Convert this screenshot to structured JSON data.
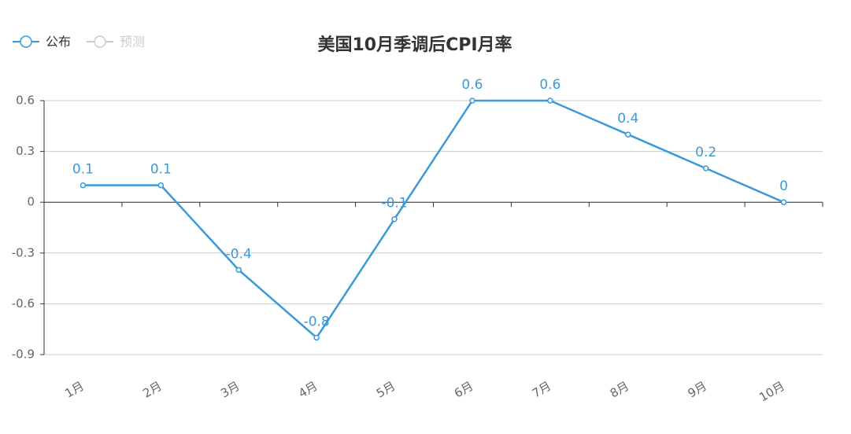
{
  "chart_data": {
    "type": "line",
    "title": "美国10月季调后CPI月率",
    "categories": [
      "1月",
      "2月",
      "3月",
      "4月",
      "5月",
      "6月",
      "7月",
      "8月",
      "9月",
      "10月"
    ],
    "series": [
      {
        "name": "公布",
        "color": "#3a9ad9",
        "values": [
          0.1,
          0.1,
          -0.4,
          -0.8,
          -0.1,
          0.6,
          0.6,
          0.4,
          0.2,
          0
        ]
      },
      {
        "name": "预测",
        "color": "#cccccc",
        "values": [
          null,
          null,
          null,
          null,
          null,
          null,
          null,
          null,
          null,
          null
        ]
      }
    ],
    "ylim": [
      -0.9,
      0.6
    ],
    "yticks": [
      -0.9,
      -0.6,
      -0.3,
      0,
      0.3,
      0.6
    ],
    "grid": true,
    "legend": "top-left"
  }
}
